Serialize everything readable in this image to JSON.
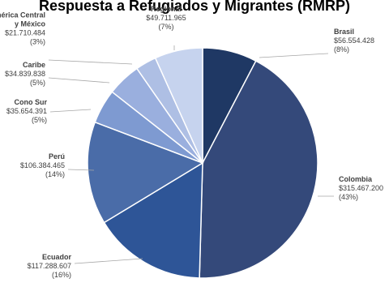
{
  "chart_data": {
    "type": "pie",
    "title": "Respuesta a Refugiados y Migrantes (RMRP)",
    "slices": [
      {
        "name": "Brasil",
        "value": 56554428,
        "value_label": "$56.554.428",
        "pct_label": "(8%)",
        "color": "#1f3864"
      },
      {
        "name": "Colombia",
        "value": 315467200,
        "value_label": "$315.467.200",
        "pct_label": "(43%)",
        "color": "#34497a"
      },
      {
        "name": "Ecuador",
        "value": 117288607,
        "value_label": "$117.288.607",
        "pct_label": "(16%)",
        "color": "#2e5597"
      },
      {
        "name": "Perú",
        "value": 106384465,
        "value_label": "$106.384.465",
        "pct_label": "(14%)",
        "color": "#4a6ca8"
      },
      {
        "name": "Cono Sur",
        "value": 35654391,
        "value_label": "$35.654.391",
        "pct_label": "(5%)",
        "color": "#7e9ad1"
      },
      {
        "name": "Caribe",
        "value": 34839838,
        "value_label": "$34.839.838",
        "pct_label": "(5%)",
        "color": "#9aafde"
      },
      {
        "name": "América Central y México",
        "name_lines": [
          "América Central",
          "y México"
        ],
        "value": 21710484,
        "value_label": "$21.710.484",
        "pct_label": "(3%)",
        "color": "#aebfe4"
      },
      {
        "name": "Regional",
        "value": 49711965,
        "value_label": "$49.711.965",
        "pct_label": "(7%)",
        "color": "#c6d3ee"
      }
    ]
  }
}
